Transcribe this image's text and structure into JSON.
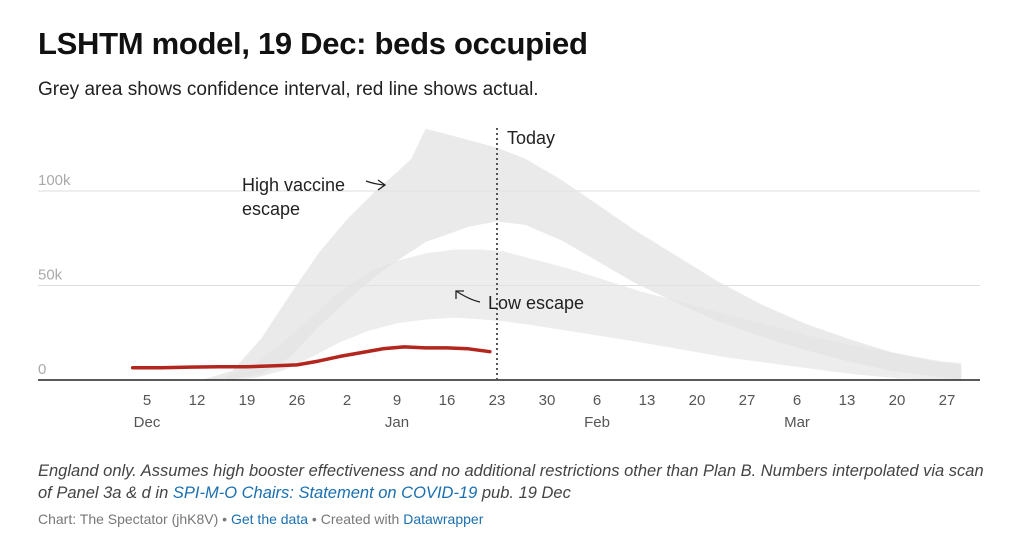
{
  "title": "LSHTM model, 19 Dec: beds occupied",
  "subtitle": "Grey area shows confidence interval, red line shows actual.",
  "notes": {
    "text_before": "England only. Assumes high booster effectiveness and no additional restrictions other than Plan B. Numbers interpolated via scan of Panel 3a & d in ",
    "link": "SPI-M-O Chairs: Statement on COVID-19",
    "text_after": " pub. 19 Dec"
  },
  "footer": {
    "credit": "Chart: The Spectator (jhK8V)",
    "sep1": " • ",
    "data_link": "Get the data",
    "sep2": " • Created with ",
    "tool_link": "Datawrapper"
  },
  "colors": {
    "actual": "#b3261e",
    "band": "#e3e3e3",
    "grid": "#dddddd",
    "axis": "#222222"
  },
  "chart_data": {
    "type": "area",
    "x_unit": "date (2021-2022)",
    "y_unit": "beds occupied",
    "ylim": [
      0,
      120000
    ],
    "grid": true,
    "y_ticks": [
      {
        "value": 0,
        "label": "0"
      },
      {
        "value": 50000,
        "label": "50k"
      },
      {
        "value": 100000,
        "label": "100k"
      }
    ],
    "x_ticks": [
      {
        "date": "2021-12-05",
        "label": "5",
        "month": "Dec"
      },
      {
        "date": "2021-12-12",
        "label": "12",
        "month": ""
      },
      {
        "date": "2021-12-19",
        "label": "19",
        "month": ""
      },
      {
        "date": "2021-12-26",
        "label": "26",
        "month": ""
      },
      {
        "date": "2022-01-02",
        "label": "2",
        "month": ""
      },
      {
        "date": "2022-01-09",
        "label": "9",
        "month": "Jan"
      },
      {
        "date": "2022-01-16",
        "label": "16",
        "month": ""
      },
      {
        "date": "2022-01-23",
        "label": "23",
        "month": ""
      },
      {
        "date": "2022-01-30",
        "label": "30",
        "month": ""
      },
      {
        "date": "2022-02-06",
        "label": "6",
        "month": "Feb"
      },
      {
        "date": "2022-02-13",
        "label": "13",
        "month": ""
      },
      {
        "date": "2022-02-20",
        "label": "20",
        "month": ""
      },
      {
        "date": "2022-02-27",
        "label": "27",
        "month": ""
      },
      {
        "date": "2022-03-06",
        "label": "6",
        "month": "Mar"
      },
      {
        "date": "2022-03-13",
        "label": "13",
        "month": ""
      },
      {
        "date": "2022-03-20",
        "label": "20",
        "month": ""
      },
      {
        "date": "2022-03-27",
        "label": "27",
        "month": ""
      }
    ],
    "today": {
      "date": "2022-01-23",
      "label": "Today"
    },
    "annotations": [
      {
        "text": [
          "High vaccine",
          "escape"
        ],
        "arrow": "→"
      },
      {
        "text": [
          "Low escape"
        ],
        "arrow": "↖"
      }
    ],
    "bands": [
      {
        "x": [
          "2021-12-13",
          "2021-12-17",
          "2021-12-21",
          "2021-12-25",
          "2021-12-29",
          "2022-01-02",
          "2022-01-06",
          "2022-01-09",
          "2022-01-11",
          "2022-01-13",
          "2022-01-16",
          "2022-01-19",
          "2022-01-23",
          "2022-01-27",
          "2022-02-01",
          "2022-02-06",
          "2022-02-11",
          "2022-02-17",
          "2022-02-23",
          "2022-03-01",
          "2022-03-07",
          "2022-03-13",
          "2022-03-19",
          "2022-03-25",
          "2022-03-29"
        ],
        "upper": [
          500,
          5000,
          22000,
          45000,
          67000,
          85000,
          100000,
          110000,
          117000,
          133000,
          130000,
          127000,
          123000,
          117000,
          106000,
          93000,
          80000,
          66000,
          52000,
          40000,
          30000,
          22000,
          15000,
          10000,
          8000
        ],
        "lower": [
          0,
          500,
          3000,
          12000,
          28000,
          42000,
          55000,
          63000,
          68000,
          73000,
          77000,
          81000,
          84000,
          82000,
          74000,
          63000,
          52000,
          41000,
          31000,
          23000,
          16000,
          10000,
          5000,
          2000,
          0
        ]
      },
      {
        "x": [
          "2021-12-16",
          "2021-12-20",
          "2021-12-24",
          "2021-12-28",
          "2022-01-01",
          "2022-01-05",
          "2022-01-09",
          "2022-01-13",
          "2022-01-17",
          "2022-01-21",
          "2022-01-24",
          "2022-01-28",
          "2022-02-02",
          "2022-02-07",
          "2022-02-12",
          "2022-02-18",
          "2022-02-24",
          "2022-03-02",
          "2022-03-08",
          "2022-03-14",
          "2022-03-20",
          "2022-03-26",
          "2022-03-29"
        ],
        "upper": [
          2000,
          8000,
          20000,
          33000,
          47000,
          57000,
          63000,
          67000,
          69000,
          69000,
          68000,
          64000,
          59000,
          53000,
          47000,
          41000,
          35000,
          29000,
          23000,
          18000,
          14000,
          10000,
          9000
        ],
        "lower": [
          0,
          1000,
          5000,
          12000,
          20000,
          26000,
          30000,
          32000,
          33000,
          32000,
          31000,
          29000,
          26000,
          23000,
          20000,
          16000,
          12000,
          9000,
          6000,
          3000,
          1000,
          0,
          0
        ]
      }
    ],
    "series": [
      {
        "name": "Actual",
        "x": [
          "2021-12-03",
          "2021-12-07",
          "2021-12-11",
          "2021-12-15",
          "2021-12-19",
          "2021-12-23",
          "2021-12-26",
          "2021-12-29",
          "2022-01-01",
          "2022-01-04",
          "2022-01-07",
          "2022-01-10",
          "2022-01-13",
          "2022-01-16",
          "2022-01-19",
          "2022-01-22"
        ],
        "values": [
          6500,
          6500,
          6800,
          7000,
          7000,
          7500,
          8000,
          10000,
          12500,
          14500,
          16500,
          17500,
          17000,
          17000,
          16500,
          15000
        ]
      }
    ]
  }
}
